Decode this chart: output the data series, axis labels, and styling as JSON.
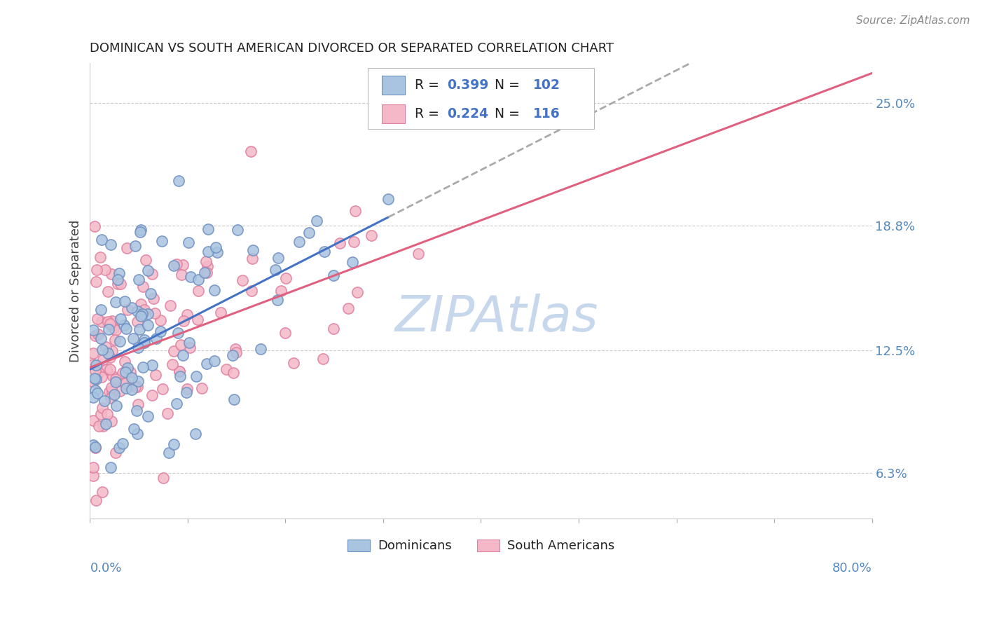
{
  "title": "DOMINICAN VS SOUTH AMERICAN DIVORCED OR SEPARATED CORRELATION CHART",
  "source": "Source: ZipAtlas.com",
  "ylabel": "Divorced or Separated",
  "xlim": [
    0.0,
    80.0
  ],
  "ylim": [
    4.0,
    27.0
  ],
  "yticks": [
    6.3,
    12.5,
    18.8,
    25.0
  ],
  "blue_R": 0.399,
  "blue_N": 102,
  "pink_R": 0.224,
  "pink_N": 116,
  "blue_color": "#A8C4E0",
  "pink_color": "#F4B8C8",
  "blue_edge_color": "#7090C0",
  "pink_edge_color": "#E080A0",
  "blue_trend_color": "#4472C4",
  "pink_trend_color": "#E06080",
  "blue_dash_color": "#AAAAAA",
  "legend_blue_label": "Dominicans",
  "legend_pink_label": "South Americans",
  "watermark_color": "#C8D8EC",
  "watermark_text": "ZIPAtlas",
  "title_color": "#222222",
  "source_color": "#888888",
  "tick_color": "#5588BB",
  "ylabel_color": "#444444"
}
